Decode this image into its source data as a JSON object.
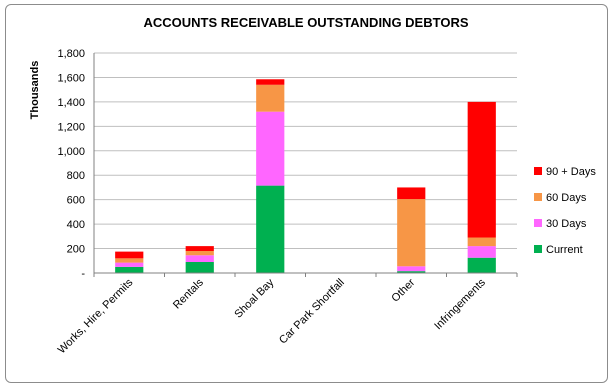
{
  "chart_data": {
    "type": "bar",
    "stacked": true,
    "title": "ACCOUNTS RECEIVABLE OUTSTANDING DEBTORS",
    "xlabel": "",
    "ylabel": "Thousands",
    "ylim": [
      0,
      1800
    ],
    "yticks": [
      0,
      200,
      400,
      600,
      800,
      1000,
      1200,
      1400,
      1600,
      1800
    ],
    "ytick_labels": [
      "-",
      "200",
      "400",
      "600",
      "800",
      "1,000",
      "1,200",
      "1,400",
      "1,600",
      "1,800"
    ],
    "grid": true,
    "legend_position": "right",
    "categories": [
      "Works, Hire, Permits",
      "Rentals",
      "Shoal Bay",
      "Car Park Shortfall",
      "Other",
      "Infringements"
    ],
    "series": [
      {
        "name": "Current",
        "color": "#00b050",
        "values": [
          50,
          90,
          715,
          0,
          15,
          125
        ]
      },
      {
        "name": "30 Days",
        "color": "#ff66ff",
        "values": [
          35,
          55,
          605,
          0,
          40,
          95
        ]
      },
      {
        "name": "60 Days",
        "color": "#f79646",
        "values": [
          35,
          35,
          220,
          0,
          550,
          70
        ]
      },
      {
        "name": "90 + Days",
        "color": "#ff0000",
        "values": [
          55,
          40,
          45,
          0,
          95,
          1110
        ]
      }
    ],
    "legend_order": [
      "90 + Days",
      "60 Days",
      "30 Days",
      "Current"
    ]
  }
}
